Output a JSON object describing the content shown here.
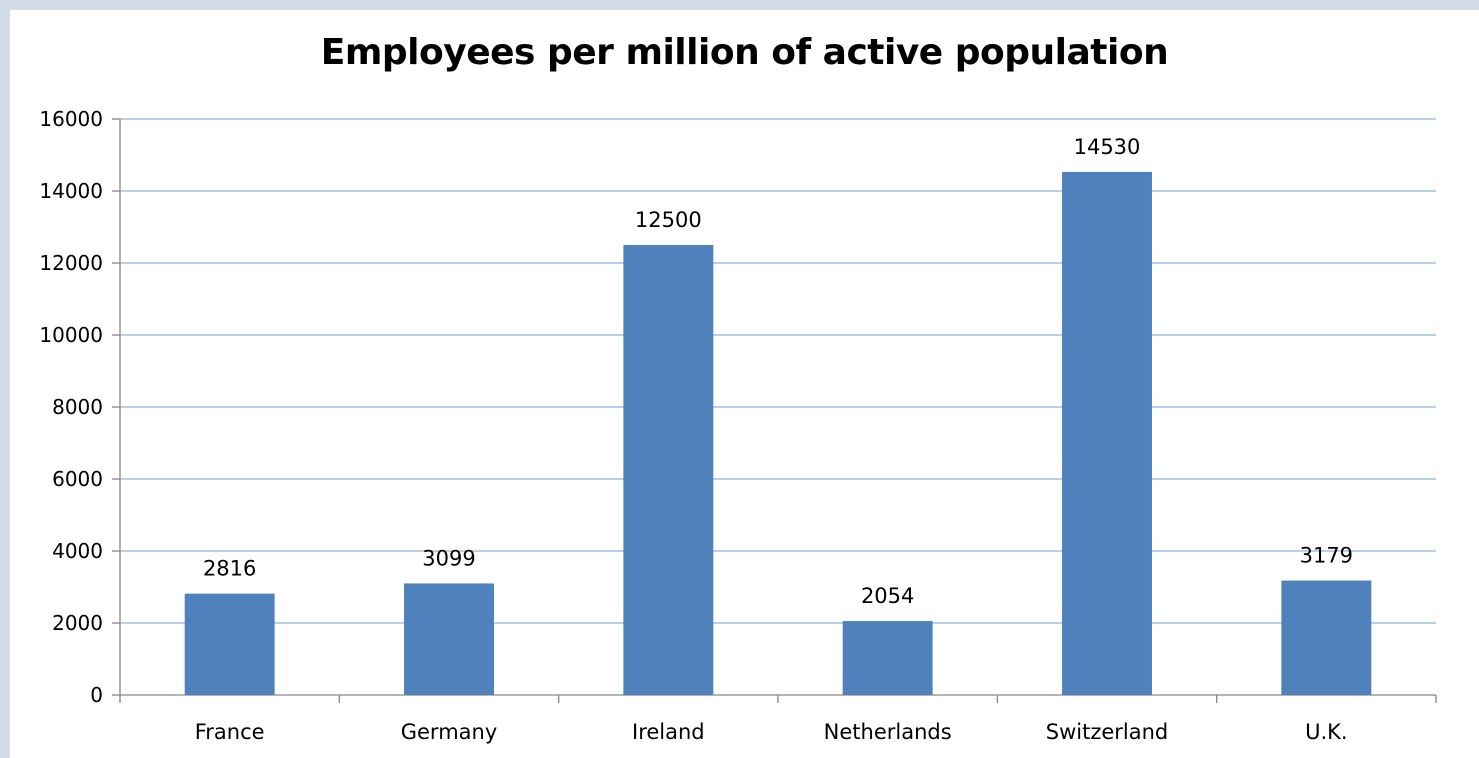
{
  "chart_data": {
    "type": "bar",
    "title": "Employees per million of active population",
    "xlabel": "",
    "ylabel": "",
    "categories": [
      "France",
      "Germany",
      "Ireland",
      "Netherlands",
      "Switzerland",
      "U.K."
    ],
    "values": [
      2816,
      3099,
      12500,
      2054,
      14530,
      3179
    ],
    "data_labels": [
      "2816",
      "3099",
      "12500",
      "2054",
      "14530",
      "3179"
    ],
    "y_ticks": [
      0,
      2000,
      4000,
      6000,
      8000,
      10000,
      12000,
      14000,
      16000
    ],
    "y_tick_labels": [
      "0",
      "2000",
      "4000",
      "6000",
      "8000",
      "10000",
      "12000",
      "14000",
      "16000"
    ],
    "ylim": [
      0,
      16000
    ],
    "grid": true,
    "legend": "none",
    "bar_color": "#4f81bd",
    "grid_color": "#8eb4e3",
    "axis_color": "#868686"
  }
}
